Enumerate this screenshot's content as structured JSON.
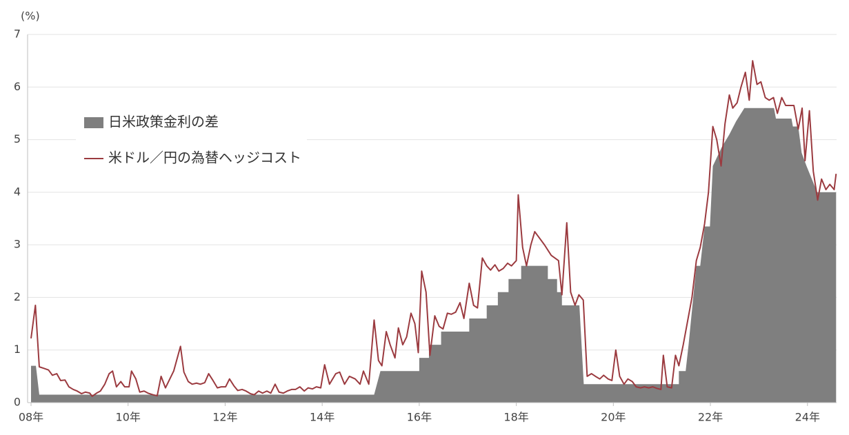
{
  "chart_data": {
    "type": "line",
    "y_unit_label": "(%)",
    "xlim": [
      2008,
      2024.6
    ],
    "ylim": [
      0,
      7
    ],
    "yticks": [
      0,
      1,
      2,
      3,
      4,
      5,
      6,
      7
    ],
    "xticks": [
      {
        "value": 2008,
        "label": "08年"
      },
      {
        "value": 2010,
        "label": "10年"
      },
      {
        "value": 2012,
        "label": "12年"
      },
      {
        "value": 2014,
        "label": "14年"
      },
      {
        "value": 2016,
        "label": "16年"
      },
      {
        "value": 2018,
        "label": "18年"
      },
      {
        "value": 2020,
        "label": "20年"
      },
      {
        "value": 2022,
        "label": "22年"
      },
      {
        "value": 2024,
        "label": "24年"
      }
    ],
    "grid": true,
    "legend": "upper-left",
    "series": [
      {
        "name": "日米政策金利の差",
        "style": "area",
        "color": "#7f7f7f",
        "x": [
          2008.0,
          2008.1,
          2008.17,
          2015.07,
          2015.2,
          2016.0,
          2016.0,
          2016.2,
          2016.2,
          2016.45,
          2016.45,
          2017.03,
          2017.03,
          2017.39,
          2017.39,
          2017.62,
          2017.62,
          2017.84,
          2017.84,
          2018.1,
          2018.1,
          2018.65,
          2018.65,
          2018.84,
          2018.84,
          2018.94,
          2018.94,
          2019.3,
          2019.39,
          2021.35,
          2021.35,
          2021.49,
          2021.55,
          2021.71,
          2021.79,
          2021.88,
          2021.99,
          2022.05,
          2022.23,
          2022.39,
          2022.53,
          2022.7,
          2023.31,
          2023.35,
          2023.67,
          2023.7,
          2023.81,
          2023.88,
          2023.98,
          2024.09,
          2024.2,
          2024.59
        ],
        "values": [
          0.7,
          0.7,
          0.15,
          0.15,
          0.6,
          0.6,
          0.85,
          0.85,
          1.1,
          1.1,
          1.35,
          1.35,
          1.6,
          1.6,
          1.85,
          1.85,
          2.1,
          2.1,
          2.35,
          2.35,
          2.6,
          2.6,
          2.35,
          2.35,
          2.1,
          2.1,
          1.85,
          1.85,
          0.35,
          0.35,
          0.6,
          0.6,
          1.1,
          2.6,
          2.6,
          3.35,
          3.35,
          4.5,
          4.85,
          5.1,
          5.35,
          5.6,
          5.6,
          5.4,
          5.4,
          5.25,
          5.25,
          4.75,
          4.5,
          4.25,
          4.0,
          4.0
        ]
      },
      {
        "name": "米ドル／円の為替ヘッジコスト",
        "style": "line",
        "color": "#9b3a3f",
        "x": [
          2008.0,
          2008.09,
          2008.17,
          2008.27,
          2008.36,
          2008.44,
          2008.53,
          2008.61,
          2008.7,
          2008.78,
          2008.87,
          2008.95,
          2009.04,
          2009.12,
          2009.21,
          2009.26,
          2009.35,
          2009.43,
          2009.52,
          2009.61,
          2009.68,
          2009.76,
          2009.85,
          2009.93,
          2010.02,
          2010.07,
          2010.16,
          2010.24,
          2010.33,
          2010.41,
          2010.51,
          2010.6,
          2010.68,
          2010.77,
          2010.86,
          2010.94,
          2011.08,
          2011.15,
          2011.24,
          2011.32,
          2011.41,
          2011.49,
          2011.58,
          2011.66,
          2011.75,
          2011.84,
          2011.92,
          2012.01,
          2012.09,
          2012.18,
          2012.26,
          2012.35,
          2012.43,
          2012.52,
          2012.6,
          2012.69,
          2012.77,
          2012.86,
          2012.94,
          2013.03,
          2013.11,
          2013.2,
          2013.28,
          2013.37,
          2013.45,
          2013.54,
          2013.63,
          2013.71,
          2013.8,
          2013.88,
          2013.97,
          2014.05,
          2014.15,
          2014.28,
          2014.36,
          2014.46,
          2014.56,
          2014.68,
          2014.78,
          2014.85,
          2014.96,
          2015.07,
          2015.16,
          2015.23,
          2015.32,
          2015.4,
          2015.5,
          2015.57,
          2015.66,
          2015.74,
          2015.83,
          2015.91,
          2015.98,
          2016.05,
          2016.14,
          2016.22,
          2016.32,
          2016.41,
          2016.49,
          2016.58,
          2016.66,
          2016.75,
          2016.84,
          2016.92,
          2017.03,
          2017.12,
          2017.2,
          2017.3,
          2017.39,
          2017.47,
          2017.56,
          2017.64,
          2017.73,
          2017.82,
          2017.9,
          2018.0,
          2018.04,
          2018.13,
          2018.21,
          2018.3,
          2018.38,
          2018.58,
          2018.72,
          2018.87,
          2018.94,
          2019.04,
          2019.12,
          2019.21,
          2019.29,
          2019.38,
          2019.46,
          2019.55,
          2019.63,
          2019.72,
          2019.8,
          2019.89,
          2019.97,
          2020.05,
          2020.13,
          2020.22,
          2020.3,
          2020.39,
          2020.47,
          2020.56,
          2020.64,
          2020.73,
          2020.81,
          2020.9,
          2020.98,
          2021.03,
          2021.11,
          2021.2,
          2021.28,
          2021.35,
          2021.44,
          2021.52,
          2021.62,
          2021.71,
          2021.79,
          2021.88,
          2021.96,
          2022.05,
          2022.13,
          2022.22,
          2022.3,
          2022.39,
          2022.46,
          2022.55,
          2022.63,
          2022.72,
          2022.8,
          2022.87,
          2022.96,
          2023.04,
          2023.13,
          2023.21,
          2023.3,
          2023.38,
          2023.47,
          2023.55,
          2023.64,
          2023.72,
          2023.81,
          2023.89,
          2023.95,
          2024.04,
          2024.12,
          2024.21,
          2024.29,
          2024.38,
          2024.46,
          2024.55,
          2024.59
        ],
        "values": [
          1.22,
          1.85,
          0.68,
          0.65,
          0.62,
          0.52,
          0.55,
          0.42,
          0.43,
          0.3,
          0.25,
          0.22,
          0.17,
          0.2,
          0.18,
          0.12,
          0.18,
          0.22,
          0.35,
          0.55,
          0.6,
          0.3,
          0.4,
          0.3,
          0.3,
          0.6,
          0.45,
          0.2,
          0.22,
          0.18,
          0.15,
          0.13,
          0.5,
          0.28,
          0.45,
          0.6,
          1.07,
          0.58,
          0.4,
          0.35,
          0.37,
          0.35,
          0.38,
          0.55,
          0.42,
          0.28,
          0.3,
          0.3,
          0.45,
          0.32,
          0.23,
          0.25,
          0.22,
          0.17,
          0.15,
          0.22,
          0.18,
          0.22,
          0.18,
          0.35,
          0.2,
          0.18,
          0.22,
          0.25,
          0.25,
          0.3,
          0.22,
          0.28,
          0.26,
          0.3,
          0.28,
          0.72,
          0.35,
          0.55,
          0.58,
          0.35,
          0.5,
          0.45,
          0.35,
          0.6,
          0.35,
          1.57,
          0.8,
          0.7,
          1.35,
          1.1,
          0.85,
          1.42,
          1.1,
          1.25,
          1.7,
          1.5,
          0.95,
          2.5,
          2.1,
          0.9,
          1.65,
          1.45,
          1.4,
          1.7,
          1.68,
          1.72,
          1.9,
          1.6,
          2.27,
          1.85,
          1.8,
          2.75,
          2.6,
          2.52,
          2.62,
          2.5,
          2.55,
          2.65,
          2.6,
          2.7,
          3.95,
          2.95,
          2.6,
          3.0,
          3.25,
          3.0,
          2.8,
          2.7,
          2.05,
          3.42,
          2.1,
          1.85,
          2.05,
          1.95,
          0.5,
          0.55,
          0.5,
          0.45,
          0.52,
          0.45,
          0.42,
          1.0,
          0.5,
          0.35,
          0.45,
          0.4,
          0.3,
          0.28,
          0.3,
          0.28,
          0.3,
          0.27,
          0.25,
          0.9,
          0.3,
          0.28,
          0.9,
          0.7,
          1.1,
          1.5,
          2.0,
          2.7,
          2.95,
          3.4,
          4.0,
          5.25,
          5.0,
          4.5,
          5.3,
          5.85,
          5.6,
          5.7,
          6.0,
          6.28,
          5.75,
          6.5,
          6.05,
          6.1,
          5.8,
          5.75,
          5.8,
          5.5,
          5.8,
          5.65,
          5.65,
          5.65,
          5.2,
          5.6,
          4.6,
          5.55,
          4.4,
          3.85,
          4.25,
          4.05,
          4.15,
          4.05,
          4.35
        ]
      }
    ]
  }
}
